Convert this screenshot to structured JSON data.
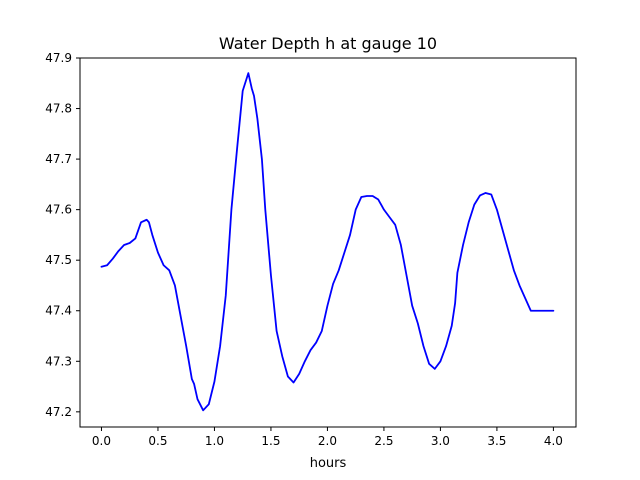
{
  "chart_data": {
    "type": "line",
    "title": "Water Depth h at gauge 10",
    "xlabel": "hours",
    "ylabel": "",
    "xlim": [
      -0.19,
      4.2
    ],
    "ylim": [
      47.17,
      47.9
    ],
    "grid": false,
    "xticks": [
      0.0,
      0.5,
      1.0,
      1.5,
      2.0,
      2.5,
      3.0,
      3.5,
      4.0
    ],
    "xtick_labels": [
      "0.0",
      "0.5",
      "1.0",
      "1.5",
      "2.0",
      "2.5",
      "3.0",
      "3.5",
      "4.0"
    ],
    "yticks": [
      47.2,
      47.3,
      47.4,
      47.5,
      47.6,
      47.7,
      47.8,
      47.9
    ],
    "ytick_labels": [
      "47.2",
      "47.3",
      "47.4",
      "47.5",
      "47.6",
      "47.7",
      "47.8",
      "47.9"
    ],
    "series": [
      {
        "color": "#0000ff",
        "x": [
          0.0,
          0.05,
          0.1,
          0.15,
          0.2,
          0.25,
          0.3,
          0.35,
          0.4,
          0.42,
          0.45,
          0.5,
          0.55,
          0.6,
          0.65,
          0.7,
          0.75,
          0.8,
          0.82,
          0.85,
          0.9,
          0.95,
          1.0,
          1.05,
          1.1,
          1.15,
          1.2,
          1.25,
          1.3,
          1.33,
          1.35,
          1.38,
          1.42,
          1.45,
          1.5,
          1.55,
          1.6,
          1.65,
          1.7,
          1.75,
          1.8,
          1.85,
          1.9,
          1.95,
          2.0,
          2.05,
          2.1,
          2.15,
          2.2,
          2.25,
          2.3,
          2.35,
          2.4,
          2.45,
          2.5,
          2.55,
          2.6,
          2.65,
          2.7,
          2.75,
          2.8,
          2.85,
          2.9,
          2.95,
          3.0,
          3.05,
          3.1,
          3.13,
          3.15,
          3.2,
          3.25,
          3.3,
          3.35,
          3.4,
          3.45,
          3.5,
          3.55,
          3.6,
          3.65,
          3.7,
          3.75,
          3.8,
          3.85,
          3.9,
          3.95,
          4.0
        ],
        "y": [
          47.487,
          47.49,
          47.503,
          47.518,
          47.53,
          47.534,
          47.543,
          47.575,
          47.58,
          47.575,
          47.55,
          47.515,
          47.49,
          47.48,
          47.45,
          47.39,
          47.33,
          47.265,
          47.255,
          47.225,
          47.203,
          47.215,
          47.26,
          47.33,
          47.43,
          47.6,
          47.72,
          47.835,
          47.87,
          47.84,
          47.825,
          47.78,
          47.7,
          47.6,
          47.47,
          47.36,
          47.31,
          47.27,
          47.258,
          47.275,
          47.3,
          47.322,
          47.337,
          47.36,
          47.41,
          47.453,
          47.48,
          47.515,
          47.55,
          47.6,
          47.625,
          47.627,
          47.627,
          47.62,
          47.6,
          47.585,
          47.57,
          47.53,
          47.47,
          47.41,
          47.375,
          47.33,
          47.295,
          47.285,
          47.3,
          47.33,
          47.37,
          47.415,
          47.475,
          47.53,
          47.575,
          47.61,
          47.628,
          47.633,
          47.63,
          47.6,
          47.56,
          47.52,
          47.48,
          47.45,
          47.425,
          47.4,
          47.4,
          47.4,
          47.4,
          47.4
        ]
      }
    ]
  }
}
